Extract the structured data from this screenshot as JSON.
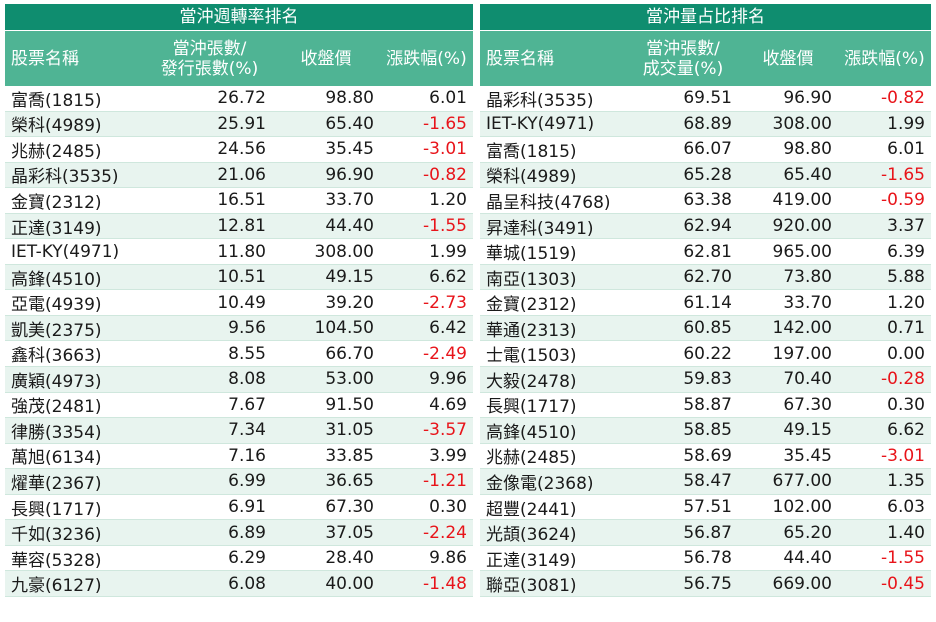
{
  "left": {
    "title": "當沖週轉率排名",
    "headers": [
      "股票名稱",
      "當沖張數/\n發行張數(%)",
      "收盤價",
      "漲跌幅(%)"
    ],
    "rows": [
      [
        "富喬(1815)",
        "26.72",
        "98.80",
        "6.01"
      ],
      [
        "榮科(4989)",
        "25.91",
        "65.40",
        "-1.65"
      ],
      [
        "兆赫(2485)",
        "24.56",
        "35.45",
        "-3.01"
      ],
      [
        "晶彩科(3535)",
        "21.06",
        "96.90",
        "-0.82"
      ],
      [
        "金寶(2312)",
        "16.51",
        "33.70",
        "1.20"
      ],
      [
        "正達(3149)",
        "12.81",
        "44.40",
        "-1.55"
      ],
      [
        "IET-KY(4971)",
        "11.80",
        "308.00",
        "1.99"
      ],
      [
        "高鋒(4510)",
        "10.51",
        "49.15",
        "6.62"
      ],
      [
        "亞電(4939)",
        "10.49",
        "39.20",
        "-2.73"
      ],
      [
        "凱美(2375)",
        "9.56",
        "104.50",
        "6.42"
      ],
      [
        "鑫科(3663)",
        "8.55",
        "66.70",
        "-2.49"
      ],
      [
        "廣穎(4973)",
        "8.08",
        "53.00",
        "9.96"
      ],
      [
        "強茂(2481)",
        "7.67",
        "91.50",
        "4.69"
      ],
      [
        "律勝(3354)",
        "7.34",
        "31.05",
        "-3.57"
      ],
      [
        "萬旭(6134)",
        "7.16",
        "33.85",
        "3.99"
      ],
      [
        "燿華(2367)",
        "6.99",
        "36.65",
        "-1.21"
      ],
      [
        "長興(1717)",
        "6.91",
        "67.30",
        "0.30"
      ],
      [
        "千如(3236)",
        "6.89",
        "37.05",
        "-2.24"
      ],
      [
        "華容(5328)",
        "6.29",
        "28.40",
        "9.86"
      ],
      [
        "九豪(6127)",
        "6.08",
        "40.00",
        "-1.48"
      ]
    ]
  },
  "right": {
    "title": "當沖量占比排名",
    "headers": [
      "股票名稱",
      "當沖張數/\n成交量(%)",
      "收盤價",
      "漲跌幅(%)"
    ],
    "rows": [
      [
        "晶彩科(3535)",
        "69.51",
        "96.90",
        "-0.82"
      ],
      [
        "IET-KY(4971)",
        "68.89",
        "308.00",
        "1.99"
      ],
      [
        "富喬(1815)",
        "66.07",
        "98.80",
        "6.01"
      ],
      [
        "榮科(4989)",
        "65.28",
        "65.40",
        "-1.65"
      ],
      [
        "晶呈科技(4768)",
        "63.38",
        "419.00",
        "-0.59"
      ],
      [
        "昇達科(3491)",
        "62.94",
        "920.00",
        "3.37"
      ],
      [
        "華城(1519)",
        "62.81",
        "965.00",
        "6.39"
      ],
      [
        "南亞(1303)",
        "62.70",
        "73.80",
        "5.88"
      ],
      [
        "金寶(2312)",
        "61.14",
        "33.70",
        "1.20"
      ],
      [
        "華通(2313)",
        "60.85",
        "142.00",
        "0.71"
      ],
      [
        "士電(1503)",
        "60.22",
        "197.00",
        "0.00"
      ],
      [
        "大毅(2478)",
        "59.83",
        "70.40",
        "-0.28"
      ],
      [
        "長興(1717)",
        "58.87",
        "67.30",
        "0.30"
      ],
      [
        "高鋒(4510)",
        "58.85",
        "49.15",
        "6.62"
      ],
      [
        "兆赫(2485)",
        "58.69",
        "35.45",
        "-3.01"
      ],
      [
        "金像電(2368)",
        "58.47",
        "677.00",
        "1.35"
      ],
      [
        "超豐(2441)",
        "57.51",
        "102.00",
        "6.03"
      ],
      [
        "光頡(3624)",
        "56.87",
        "65.20",
        "1.40"
      ],
      [
        "正達(3149)",
        "56.78",
        "44.40",
        "-1.55"
      ],
      [
        "聯亞(3081)",
        "56.75",
        "669.00",
        "-0.45"
      ]
    ]
  },
  "colors": {
    "title_bg": "#0f8d6f",
    "header_bg": "#4fb494",
    "alt_row_bg": "#e8f4ef",
    "negative": "#e8141a"
  }
}
